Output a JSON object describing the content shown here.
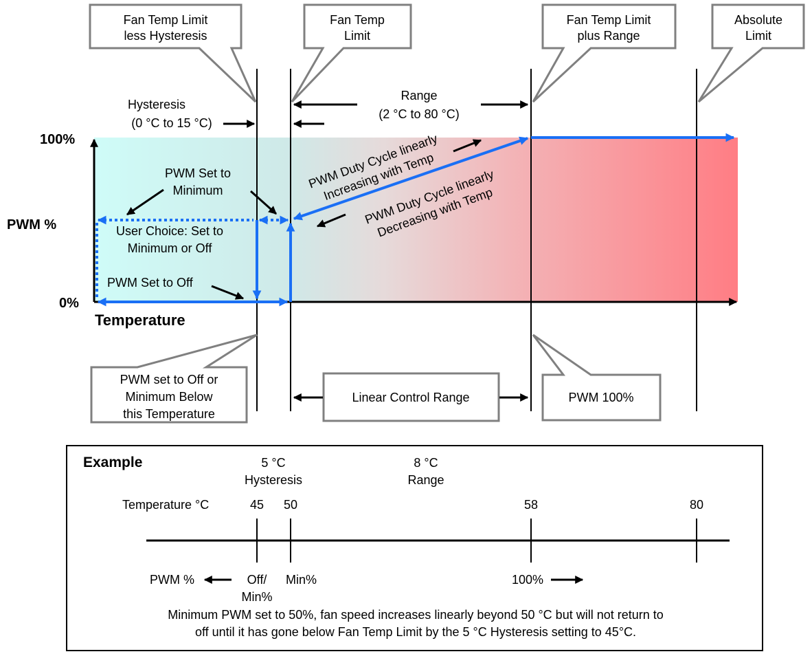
{
  "callouts": {
    "hysteresis_limit": [
      "Fan Temp Limit",
      "less Hysteresis"
    ],
    "fan_temp_limit": [
      "Fan Temp",
      "Limit"
    ],
    "plus_range": [
      "Fan Temp Limit",
      "plus Range"
    ],
    "absolute_limit": [
      "Absolute",
      "Limit"
    ],
    "pwm_off_min": [
      "PWM set to Off or",
      "Minimum Below",
      "this Temperature"
    ],
    "linear_control": "Linear Control Range",
    "pwm_100": "PWM 100%"
  },
  "labels": {
    "hysteresis": [
      "Hysteresis",
      "(0 °C to 15 °C)"
    ],
    "range": [
      "Range",
      "(2 °C to 80 °C)"
    ],
    "y_max": "100%",
    "y_min": "0%",
    "y_axis": "PWM %",
    "x_axis": "Temperature",
    "pwm_min": [
      "PWM Set to",
      "Minimum"
    ],
    "user_choice": [
      "User Choice: Set to",
      "Minimum or Off"
    ],
    "pwm_off": "PWM Set to Off",
    "increasing": [
      "PWM Duty Cycle linearly",
      "Increasing with Temp"
    ],
    "decreasing": [
      "PWM Duty Cycle linearly",
      "Decreasing with Temp"
    ]
  },
  "example": {
    "title": "Example",
    "hysteresis": [
      "5 °C",
      "Hysteresis"
    ],
    "range": [
      "8 °C",
      "Range"
    ],
    "temp_label": "Temperature °C",
    "ticks": [
      "45",
      "50",
      "58",
      "80"
    ],
    "pwm_label": "PWM %",
    "off_min": [
      "Off/",
      "Min%"
    ],
    "min_pct": "Min%",
    "full_pct": "100%",
    "note": [
      "Minimum PWM set to 50%, fan speed increases linearly beyond 50 °C but will not return to",
      "off until it has gone below Fan Temp Limit by the 5 °C Hysteresis setting to 45°C."
    ]
  },
  "colors": {
    "cool": "#cffcf8",
    "hot": "#ff7d84",
    "curve": "#1a6ff5"
  }
}
